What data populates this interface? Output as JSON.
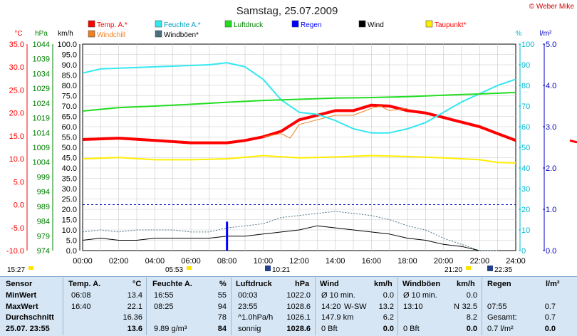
{
  "chart_data": {
    "type": "line",
    "title": "Samstag, 25.07.2009",
    "credit": "© Weber Mike",
    "x_ticks": [
      "00:00",
      "02:00",
      "04:00",
      "06:00",
      "08:00",
      "10:00",
      "12:00",
      "14:00",
      "16:00",
      "18:00",
      "20:00",
      "22:00",
      "24:00"
    ],
    "axes": [
      {
        "label": "°C",
        "color": "#ff0000",
        "min": -10,
        "max": 35,
        "step": 5,
        "ticks": [
          "35.0",
          "30.0",
          "25.0",
          "20.0",
          "15.0",
          "10.0",
          "5.0",
          "0.0",
          "-5.0",
          "-10.0"
        ]
      },
      {
        "label": "hPa",
        "color": "#008000",
        "min": 974,
        "max": 1044,
        "ticks": [
          "1044",
          "1039",
          "1034",
          "1029",
          "1024",
          "1019",
          "1014",
          "1009",
          "1004",
          "999",
          "994",
          "989",
          "984",
          "979",
          "974"
        ]
      },
      {
        "label": "km/h",
        "color": "#000000",
        "min": 0,
        "max": 100,
        "ticks": [
          "100.0",
          "95.0",
          "90.0",
          "85.0",
          "80.0",
          "75.0",
          "70.0",
          "65.0",
          "60.0",
          "55.0",
          "50.0",
          "45.0",
          "40.0",
          "35.0",
          "30.0",
          "25.0",
          "20.0",
          "15.0",
          "10.0",
          "5.0",
          "0.0"
        ]
      },
      {
        "label": "%",
        "color": "#00b8d0",
        "min": 0,
        "max": 100,
        "ticks": [
          "100",
          "90",
          "80",
          "70",
          "60",
          "50",
          "40",
          "30",
          "20",
          "10",
          "0"
        ]
      },
      {
        "label": "l/m²",
        "color": "#0000c0",
        "min": 0,
        "max": 5,
        "ticks": [
          "5.0",
          "4.0",
          "3.0",
          "2.0",
          "1.0",
          "0.0"
        ]
      }
    ],
    "legend": [
      {
        "name": "Temp. A.*",
        "color": "#ff0000"
      },
      {
        "name": "Feuchte A.*",
        "color": "#33e8f0"
      },
      {
        "name": "Luftdruck",
        "color": "#22dd22"
      },
      {
        "name": "Regen",
        "color": "#0000ff"
      },
      {
        "name": "Wind",
        "color": "#000000"
      },
      {
        "name": "Taupunkt*",
        "color": "#ffee00"
      },
      {
        "name": "Windchill",
        "color": "#f08020"
      },
      {
        "name": "Windböen*",
        "color": "#4a7080"
      }
    ],
    "series": [
      {
        "name": "Temp. A.*",
        "axis": "°C",
        "color": "#ff0000",
        "x": [
          0,
          2,
          4,
          6,
          8,
          9,
          10,
          11,
          12,
          13,
          14,
          15,
          16,
          17,
          18,
          19,
          20,
          21,
          22,
          23,
          24
        ],
        "y": [
          14.2,
          14.5,
          14.0,
          13.5,
          13.5,
          14.0,
          14.8,
          16.0,
          18.5,
          19.5,
          20.5,
          20.5,
          21.7,
          21.5,
          20.5,
          20.0,
          19.0,
          18.0,
          17.0,
          15.5,
          14.0
        ]
      },
      {
        "name": "Windchill",
        "axis": "°C",
        "color": "#f08020",
        "x": [
          10,
          11,
          11.5,
          12,
          13,
          14,
          15,
          16,
          16.5,
          17,
          18
        ],
        "y": [
          14.8,
          15.5,
          14.5,
          17.5,
          18.5,
          19.5,
          19.5,
          21.0,
          21.5,
          20.5,
          21.0
        ]
      },
      {
        "name": "Feuchte A.*",
        "axis": "%",
        "color": "#33e8f0",
        "x": [
          0,
          1,
          4,
          7,
          8,
          9,
          10,
          11,
          12,
          13,
          14,
          15,
          16,
          17,
          18,
          19,
          20,
          21,
          22,
          23,
          24
        ],
        "y": [
          86,
          88,
          89,
          90,
          91,
          89,
          83,
          73,
          67,
          66,
          63,
          59,
          57,
          57,
          59,
          62,
          67,
          72,
          76,
          80,
          83
        ]
      },
      {
        "name": "Luftdruck",
        "axis": "hPa",
        "color": "#22dd22",
        "x": [
          0,
          2,
          4,
          6,
          8,
          10,
          12,
          14,
          16,
          18,
          20,
          22,
          24
        ],
        "y": [
          1021.3,
          1022.5,
          1023.0,
          1023.6,
          1024.3,
          1024.9,
          1025.3,
          1025.7,
          1025.9,
          1026.2,
          1026.7,
          1027.1,
          1027.6
        ]
      },
      {
        "name": "Taupunkt*",
        "axis": "°C",
        "color": "#ffee00",
        "x": [
          0,
          2,
          4,
          6,
          8,
          10,
          12,
          14,
          16,
          18,
          20,
          22,
          23,
          24
        ],
        "y": [
          10.0,
          10.3,
          9.8,
          9.8,
          10.0,
          10.7,
          10.2,
          10.4,
          10.7,
          10.5,
          10.2,
          9.8,
          9.2,
          9.1
        ]
      },
      {
        "name": "Wind",
        "axis": "km/h",
        "color": "#000000",
        "x": [
          0,
          1,
          2,
          3,
          4,
          5,
          6,
          7,
          8,
          9,
          10,
          11,
          12,
          13,
          14,
          15,
          16,
          17,
          18,
          19,
          20,
          21,
          22,
          23
        ],
        "y": [
          5,
          6,
          5,
          5,
          6,
          6,
          6,
          6,
          7,
          7,
          8,
          9,
          10,
          12,
          11,
          10,
          9,
          8,
          6,
          5,
          3,
          2,
          0,
          0
        ]
      },
      {
        "name": "Windböen*",
        "axis": "km/h",
        "color": "#4a7080",
        "x": [
          0,
          1,
          2,
          3,
          4,
          5,
          6,
          7,
          8,
          9,
          10,
          11,
          12,
          13,
          14,
          15,
          16,
          17,
          18,
          19,
          20,
          21,
          22,
          23
        ],
        "y": [
          9,
          10,
          9,
          10,
          10,
          10,
          9,
          9,
          11,
          12,
          13,
          16,
          17,
          18,
          19,
          18,
          17,
          15,
          12,
          10,
          6,
          3,
          0,
          0
        ]
      },
      {
        "name": "Regen",
        "axis": "l/m²",
        "color": "#0000ff",
        "type": "bar",
        "x": [
          8
        ],
        "y": [
          0.7
        ]
      }
    ],
    "ref_line_0C": true,
    "sun": {
      "sunrise_label": "05:53",
      "sunset_label": "21:20",
      "moonrise_label": "10:21",
      "moonset_label": "22:35",
      "left_time": "15:27"
    }
  },
  "table": {
    "headers": [
      "Sensor",
      "Temp. A.",
      "°C",
      "Feuchte A.",
      "%",
      "Luftdruck",
      "hPa",
      "Wind",
      "km/h",
      "Windböen",
      "km/h",
      "Regen",
      "l/m²"
    ],
    "rows": [
      {
        "label": "MinWert",
        "t_time": "06:08",
        "t_val": "13.4",
        "f_time": "16:55",
        "f_val": "55",
        "p_time": "00:03",
        "p_val": "1022.0",
        "w_a": "Ø 10 min.",
        "w_val": "0.0",
        "g_a": "Ø 10 min.",
        "g_val": "0.0",
        "r_a": "",
        "r_val": ""
      },
      {
        "label": "MaxWert",
        "t_time": "16:40",
        "t_val": "22.1",
        "f_time": "08:25",
        "f_val": "94",
        "p_time": "23:55",
        "p_val": "1028.6",
        "w_a": "14:20",
        "w_b": "W-SW",
        "w_val": "13.2",
        "g_a": "13:10",
        "g_b": "N",
        "g_val": "32.5",
        "r_a": "07:55",
        "r_val": "0.7"
      },
      {
        "label": "Durchschnitt",
        "t_time": "",
        "t_val": "16.36",
        "f_time": "",
        "f_val": "78",
        "p_time": "^1.0hPa/h",
        "p_val": "1026.1",
        "w_a": "147.9 km",
        "w_val": "6.2",
        "g_a": "",
        "g_val": "8.2",
        "r_a": "Gesamt:",
        "r_val": "0.7"
      },
      {
        "label": "25.07. 23:55",
        "t_time": "",
        "t_val": "13.6",
        "f_time": "9.89 g/m³",
        "f_val": "84",
        "p_time": "sonnig",
        "p_val": "1028.6",
        "w_a": "0 Bft",
        "w_val": "0.0",
        "g_a": "0 Bft",
        "g_val": "0.0",
        "r_a": "0.7 l/m²",
        "r_val": "0.0"
      }
    ]
  }
}
